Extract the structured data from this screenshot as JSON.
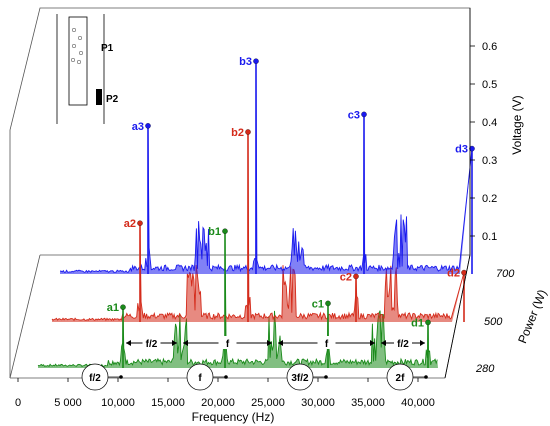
{
  "chart_data": {
    "type": "line",
    "layout": "3d-waterfall",
    "grid": false,
    "x_axis": {
      "label": "Frequency (Hz)",
      "range": [
        0,
        42500
      ],
      "ticks": [
        "0",
        "5 000",
        "10,000",
        "15,000",
        "20,000",
        "25,000",
        "30,000",
        "35,000",
        "40,000"
      ],
      "tick_values": [
        0,
        5000,
        10000,
        15000,
        20000,
        25000,
        30000,
        35000,
        40000
      ]
    },
    "y_axis": {
      "label": "Voltage (V)",
      "range": [
        0,
        0.65
      ],
      "ticks": [
        "0.1",
        "0.2",
        "0.3",
        "0.4",
        "0.5",
        "0.6"
      ],
      "tick_values": [
        0.1,
        0.2,
        0.3,
        0.4,
        0.5,
        0.6
      ]
    },
    "z_axis": {
      "label": "Power (W)",
      "ticks": [
        "280",
        "500",
        "700"
      ]
    },
    "series": [
      {
        "name": "280",
        "color": "#1a8a1a",
        "peaks": [
          {
            "label": "a1",
            "x": 10500,
            "y": 0.16
          },
          {
            "label": "b1",
            "x": 20700,
            "y": 0.36
          },
          {
            "label": "c1",
            "x": 31000,
            "y": 0.17
          },
          {
            "label": "d1",
            "x": 41000,
            "y": 0.12
          }
        ]
      },
      {
        "name": "500",
        "color": "#d42a1a",
        "peaks": [
          {
            "label": "a2",
            "x": 10800,
            "y": 0.26
          },
          {
            "label": "b2",
            "x": 21600,
            "y": 0.5
          },
          {
            "label": "c2",
            "x": 32400,
            "y": 0.12
          },
          {
            "label": "d2",
            "x": 43200,
            "y": 0.13
          }
        ]
      },
      {
        "name": "700",
        "color": "#1a1aee",
        "peaks": [
          {
            "label": "a3",
            "x": 10800,
            "y": 0.39
          },
          {
            "label": "b3",
            "x": 21600,
            "y": 0.56
          },
          {
            "label": "c3",
            "x": 32400,
            "y": 0.42
          },
          {
            "label": "d3",
            "x": 43200,
            "y": 0.33
          }
        ]
      }
    ],
    "annotations": {
      "spacing_labels": [
        "f/2",
        "f",
        "f",
        "f/2"
      ],
      "circle_labels": [
        "f/2",
        "f",
        "3f/2",
        "2f"
      ],
      "inset_labels": [
        "P1",
        "P2"
      ]
    }
  }
}
